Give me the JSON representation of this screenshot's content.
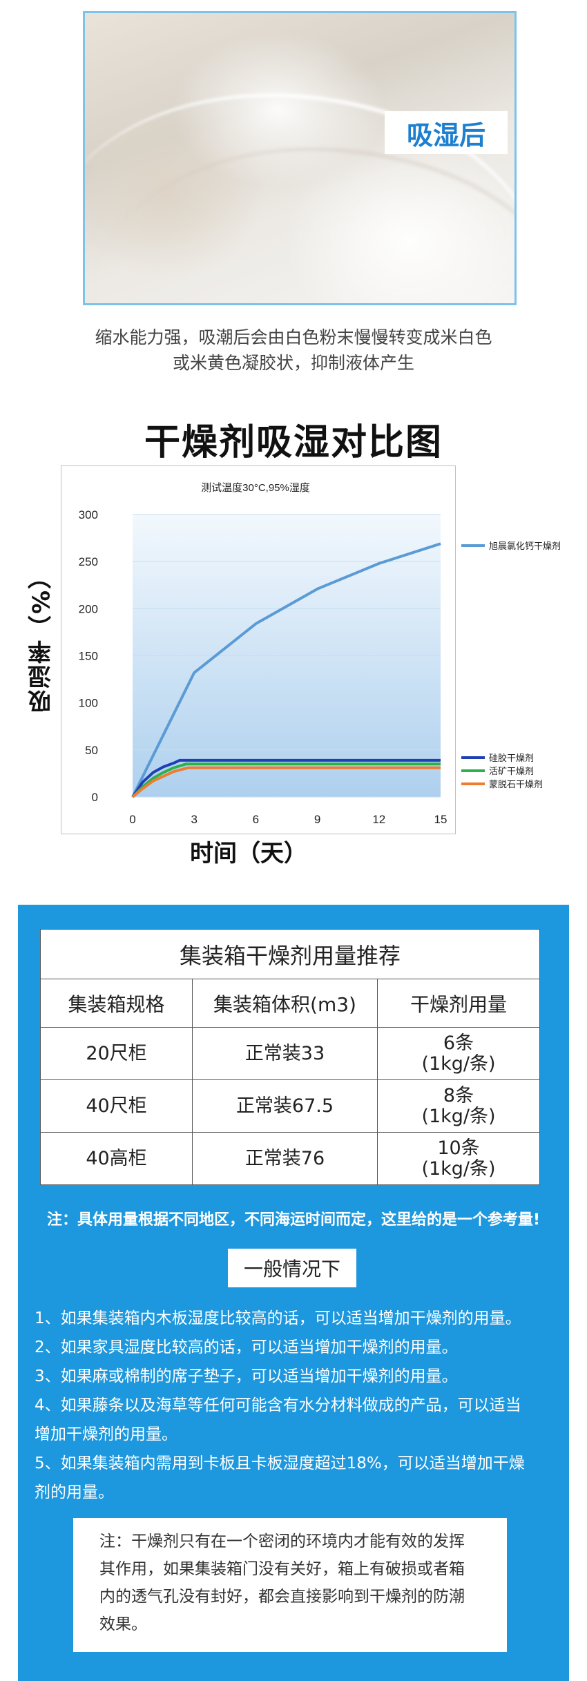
{
  "photo": {
    "label": "吸湿后"
  },
  "description": {
    "line1": "缩水能力强，吸潮后会由白色粉末慢慢转变成米白色",
    "line2": "或米黄色凝胶状，抑制液体产生"
  },
  "chart_title": "干燥剂吸湿对比图",
  "chart_data": {
    "type": "line",
    "subtitle": "测试温度30°C,95%湿度",
    "xlabel": "时间（天）",
    "ylabel": "吸湿率（%）",
    "xlim": [
      0,
      15
    ],
    "ylim": [
      0,
      300
    ],
    "x_ticks": [
      0,
      3,
      6,
      9,
      12,
      15
    ],
    "y_ticks": [
      0,
      50,
      100,
      150,
      200,
      250,
      300
    ],
    "grid": true,
    "series": [
      {
        "name": "旭晨氯化钙干燥剂",
        "color": "#5b9bd5",
        "legend": "right-top",
        "x": [
          0,
          3,
          6,
          9,
          12,
          15
        ],
        "y": [
          0,
          132,
          184,
          221,
          248,
          269
        ]
      },
      {
        "name": "硅胶干燥剂",
        "color": "#1f3fb5",
        "legend": "right-bottom",
        "x": [
          0,
          0.5,
          1,
          1.5,
          2,
          2.3,
          3,
          6,
          9,
          12,
          15
        ],
        "y": [
          0,
          16,
          26,
          32,
          36,
          39,
          39,
          39,
          39,
          39,
          39
        ]
      },
      {
        "name": "活矿干燥剂",
        "color": "#2bb24c",
        "legend": "right-bottom",
        "x": [
          0,
          0.5,
          1,
          1.5,
          2,
          2.6,
          3,
          6,
          9,
          12,
          15
        ],
        "y": [
          0,
          11,
          20,
          26,
          31,
          35,
          35,
          35,
          35,
          35,
          35
        ]
      },
      {
        "name": "蒙脱石干燥剂",
        "color": "#ed7d31",
        "legend": "right-bottom",
        "x": [
          0,
          0.5,
          1,
          1.5,
          2,
          2.7,
          3,
          6,
          9,
          12,
          15
        ],
        "y": [
          0,
          9,
          17,
          22,
          27,
          31,
          31,
          31,
          31,
          31,
          31
        ]
      }
    ]
  },
  "table": {
    "caption": "集装箱干燥剂用量推荐",
    "headers": [
      "集装箱规格",
      "集装箱体积(m3)",
      "干燥剂用量"
    ],
    "rows": [
      {
        "spec": "20尺柜",
        "volume": "正常装33",
        "amount1": "6条",
        "amount2": "(1kg/条)"
      },
      {
        "spec": "40尺柜",
        "volume": "正常装67.5",
        "amount1": "8条",
        "amount2": "(1kg/条)"
      },
      {
        "spec": "40高柜",
        "volume": "正常装76",
        "amount1": "10条",
        "amount2": "(1kg/条)"
      }
    ]
  },
  "note": "注：具体用量根据不同地区，不同海运时间而定，这里给的是一个参考量!",
  "general_label": "一般情况下",
  "tips": [
    "1、如果集装箱内木板湿度比较高的话，可以适当增加干燥剂的用量。",
    "2、如果家具湿度比较高的话，可以适当增加干燥剂的用量。",
    "3、如果麻或棉制的席子垫子，可以适当增加干燥剂的用量。",
    "4、如果藤条以及海草等任何可能含有水分材料做成的产品，可以适当",
    "增加干燥剂的用量。",
    "5、如果集装箱内需用到卡板且卡板湿度超过18%，可以适当增加干燥",
    "剂的用量。"
  ],
  "final_note": [
    "注：干燥剂只有在一个密闭的环境内才能有效的发挥",
    "其作用，如果集装箱门没有关好，箱上有破损或者箱",
    "内的透气孔没有封好，都会直接影响到干燥剂的防潮",
    "效果。"
  ]
}
